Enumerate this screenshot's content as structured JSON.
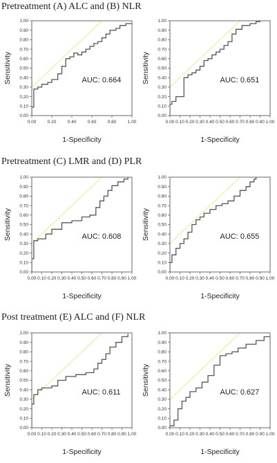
{
  "sections": [
    {
      "title": "Pretreatment (A) ALC and (B) NLR"
    },
    {
      "title": "Pretreatment (C) LMR and (D) PLR"
    },
    {
      "title": "Post treatment (E) ALC and (F) NLR"
    }
  ],
  "chart_data": [
    {
      "type": "line",
      "panel": "A",
      "auc_label": "AUC: 0.664",
      "xlabel": "1-Specificity",
      "ylabel": "Sensitivity",
      "xlim": [
        0,
        1
      ],
      "ylim": [
        0,
        1
      ],
      "x_ticks": [
        "0.00",
        "0.20",
        "0.40",
        "0.60",
        "0.80",
        "1.00"
      ],
      "y_ticks": [
        "0.00",
        "0.10",
        "0.20",
        "0.30",
        "0.40",
        "0.50",
        "0.60",
        "0.70",
        "0.80",
        "0.90",
        "1.00"
      ],
      "reference_line": {
        "x": [
          0,
          1
        ],
        "y": [
          0.3,
          1.3
        ],
        "color": "#e8e89a"
      },
      "series": [
        {
          "color": "#555555",
          "x": [
            0,
            0,
            0.02,
            0.02,
            0.06,
            0.06,
            0.1,
            0.1,
            0.16,
            0.16,
            0.2,
            0.2,
            0.26,
            0.26,
            0.3,
            0.3,
            0.34,
            0.34,
            0.38,
            0.38,
            0.42,
            0.42,
            0.46,
            0.46,
            0.5,
            0.5,
            0.54,
            0.54,
            0.58,
            0.58,
            0.62,
            0.62,
            0.66,
            0.66,
            0.7,
            0.7,
            0.74,
            0.74,
            0.78,
            0.78,
            0.84,
            0.84,
            0.88,
            0.88,
            0.94,
            0.94,
            1.0
          ],
          "y": [
            0,
            0.09,
            0.09,
            0.28,
            0.28,
            0.3,
            0.3,
            0.33,
            0.33,
            0.35,
            0.35,
            0.38,
            0.38,
            0.44,
            0.44,
            0.52,
            0.52,
            0.6,
            0.6,
            0.62,
            0.62,
            0.66,
            0.66,
            0.64,
            0.64,
            0.67,
            0.67,
            0.7,
            0.7,
            0.73,
            0.73,
            0.76,
            0.76,
            0.78,
            0.78,
            0.82,
            0.82,
            0.86,
            0.86,
            0.9,
            0.9,
            0.92,
            0.92,
            0.95,
            0.95,
            0.97,
            0.97
          ]
        }
      ]
    },
    {
      "type": "line",
      "panel": "B",
      "auc_label": "AUC: 0.651",
      "xlabel": "1-Specificity",
      "ylabel": "Sensitivity",
      "xlim": [
        0,
        1
      ],
      "ylim": [
        0,
        1
      ],
      "x_ticks": [
        "0.00",
        "0.10",
        "0.20",
        "0.30",
        "0.40",
        "0.50",
        "0.60",
        "0.70",
        "0.80",
        "0.90",
        "1.00"
      ],
      "y_ticks": [
        "0.00",
        "0.10",
        "0.20",
        "0.30",
        "0.40",
        "0.50",
        "0.60",
        "0.70",
        "0.80",
        "0.90",
        "1.00"
      ],
      "reference_line": {
        "x": [
          0,
          1
        ],
        "y": [
          0.3,
          1.3
        ],
        "color": "#e8e89a"
      },
      "series": [
        {
          "color": "#555555",
          "x": [
            0,
            0,
            0.02,
            0.02,
            0.06,
            0.06,
            0.14,
            0.14,
            0.18,
            0.18,
            0.22,
            0.22,
            0.26,
            0.26,
            0.3,
            0.3,
            0.34,
            0.34,
            0.38,
            0.38,
            0.42,
            0.42,
            0.46,
            0.46,
            0.5,
            0.5,
            0.54,
            0.54,
            0.58,
            0.58,
            0.62,
            0.62,
            0.66,
            0.66,
            0.72,
            0.72,
            0.8,
            0.8,
            0.86,
            0.86,
            0.9,
            0.9
          ],
          "y": [
            0,
            0.12,
            0.12,
            0.15,
            0.15,
            0.2,
            0.2,
            0.4,
            0.4,
            0.43,
            0.43,
            0.45,
            0.45,
            0.48,
            0.48,
            0.52,
            0.52,
            0.58,
            0.58,
            0.6,
            0.6,
            0.64,
            0.64,
            0.67,
            0.67,
            0.7,
            0.7,
            0.74,
            0.74,
            0.78,
            0.78,
            0.86,
            0.86,
            0.91,
            0.91,
            0.95,
            0.95,
            0.97,
            0.97,
            0.99,
            0.99,
            1.0
          ]
        }
      ]
    },
    {
      "type": "line",
      "panel": "C",
      "auc_label": "AUC: 0.608",
      "xlabel": "1-Specificity",
      "ylabel": "Sensitivity",
      "xlim": [
        0,
        1
      ],
      "ylim": [
        0,
        1
      ],
      "x_ticks": [
        "0.00",
        "0.10",
        "0.20",
        "0.30",
        "0.40",
        "0.50",
        "0.60",
        "0.70",
        "0.80",
        "0.90",
        "1.00"
      ],
      "y_ticks": [
        "0.00",
        "0.10",
        "0.20",
        "0.30",
        "0.40",
        "0.50",
        "0.60",
        "0.70",
        "0.80",
        "0.90",
        "1.00"
      ],
      "reference_line": {
        "x": [
          0,
          1
        ],
        "y": [
          0.3,
          1.3
        ],
        "color": "#e8e89a"
      },
      "series": [
        {
          "color": "#555555",
          "x": [
            0,
            0,
            0.02,
            0.02,
            0.06,
            0.06,
            0.14,
            0.14,
            0.2,
            0.2,
            0.3,
            0.3,
            0.4,
            0.4,
            0.5,
            0.5,
            0.58,
            0.58,
            0.64,
            0.64,
            0.68,
            0.68,
            0.72,
            0.72,
            0.76,
            0.76,
            0.8,
            0.8,
            0.86,
            0.86,
            0.92,
            0.92,
            0.96,
            0.96
          ],
          "y": [
            0,
            0.14,
            0.14,
            0.33,
            0.33,
            0.35,
            0.35,
            0.4,
            0.4,
            0.45,
            0.45,
            0.52,
            0.52,
            0.54,
            0.54,
            0.58,
            0.58,
            0.6,
            0.6,
            0.68,
            0.68,
            0.75,
            0.75,
            0.8,
            0.8,
            0.86,
            0.86,
            0.91,
            0.91,
            0.95,
            0.95,
            0.98,
            0.98,
            1.0
          ]
        }
      ]
    },
    {
      "type": "line",
      "panel": "D",
      "auc_label": "AUC: 0.655",
      "xlabel": "1-Specificity",
      "ylabel": "Sensitivity",
      "xlim": [
        0,
        1
      ],
      "ylim": [
        0,
        1
      ],
      "x_ticks": [
        "0.00",
        "0.10",
        "0.20",
        "0.30",
        "0.40",
        "0.50",
        "0.60",
        "0.70",
        "0.80",
        "0.90",
        "1.00"
      ],
      "y_ticks": [
        "0.00",
        "0.10",
        "0.20",
        "0.30",
        "0.40",
        "0.50",
        "0.60",
        "0.70",
        "0.80",
        "0.90",
        "1.00"
      ],
      "reference_line": {
        "x": [
          0,
          1
        ],
        "y": [
          0.3,
          1.3
        ],
        "color": "#e8e89a"
      },
      "series": [
        {
          "color": "#555555",
          "x": [
            0,
            0,
            0.02,
            0.02,
            0.06,
            0.06,
            0.1,
            0.1,
            0.14,
            0.14,
            0.18,
            0.18,
            0.22,
            0.22,
            0.26,
            0.26,
            0.3,
            0.3,
            0.34,
            0.34,
            0.4,
            0.4,
            0.46,
            0.46,
            0.52,
            0.52,
            0.58,
            0.58,
            0.64,
            0.64,
            0.7,
            0.7,
            0.76,
            0.76,
            0.8,
            0.8,
            0.84,
            0.84,
            0.86,
            0.86
          ],
          "y": [
            0,
            0.1,
            0.1,
            0.18,
            0.18,
            0.25,
            0.25,
            0.3,
            0.3,
            0.35,
            0.35,
            0.42,
            0.42,
            0.5,
            0.5,
            0.55,
            0.55,
            0.58,
            0.58,
            0.62,
            0.62,
            0.66,
            0.66,
            0.7,
            0.7,
            0.72,
            0.72,
            0.75,
            0.75,
            0.8,
            0.8,
            0.86,
            0.86,
            0.9,
            0.9,
            0.95,
            0.95,
            0.98,
            0.98,
            1.0
          ]
        }
      ]
    },
    {
      "type": "line",
      "panel": "E",
      "auc_label": "AUC: 0.611",
      "xlabel": "1-Specificity",
      "ylabel": "Sensitivity",
      "xlim": [
        0,
        1
      ],
      "ylim": [
        0,
        1
      ],
      "x_ticks": [
        "0.00",
        "0.10",
        "0.20",
        "0.30",
        "0.40",
        "0.50",
        "0.60",
        "0.70",
        "0.80",
        "0.90",
        "1.00"
      ],
      "y_ticks": [
        "0.00",
        "0.10",
        "0.20",
        "0.30",
        "0.40",
        "0.50",
        "0.60",
        "0.70",
        "0.80",
        "0.90",
        "1.00"
      ],
      "reference_line": {
        "x": [
          0,
          1
        ],
        "y": [
          0.3,
          1.3
        ],
        "color": "#e8e89a"
      },
      "series": [
        {
          "color": "#555555",
          "x": [
            0,
            0,
            0.02,
            0.02,
            0.06,
            0.06,
            0.1,
            0.1,
            0.2,
            0.2,
            0.26,
            0.26,
            0.34,
            0.34,
            0.44,
            0.44,
            0.54,
            0.54,
            0.62,
            0.62,
            0.66,
            0.66,
            0.7,
            0.7,
            0.74,
            0.74,
            0.78,
            0.78,
            0.84,
            0.84,
            0.9,
            0.9,
            0.96,
            0.96
          ],
          "y": [
            0,
            0.25,
            0.25,
            0.35,
            0.35,
            0.4,
            0.4,
            0.42,
            0.42,
            0.44,
            0.44,
            0.5,
            0.5,
            0.54,
            0.54,
            0.56,
            0.56,
            0.58,
            0.58,
            0.62,
            0.62,
            0.68,
            0.68,
            0.72,
            0.72,
            0.78,
            0.78,
            0.85,
            0.85,
            0.9,
            0.9,
            0.96,
            0.96,
            0.99
          ]
        }
      ]
    },
    {
      "type": "line",
      "panel": "F",
      "auc_label": "AUC: 0.627",
      "xlabel": "1-Specificity",
      "ylabel": "Sensitivity",
      "xlim": [
        0,
        1
      ],
      "ylim": [
        0,
        1
      ],
      "x_ticks": [
        "0.00",
        "0.10",
        "0.20",
        "0.30",
        "0.40",
        "0.50",
        "0.60",
        "0.70",
        "0.80",
        "0.90",
        "1.00"
      ],
      "y_ticks": [
        "0.00",
        "0.10",
        "0.20",
        "0.30",
        "0.40",
        "0.50",
        "0.60",
        "0.70",
        "0.80",
        "0.90",
        "1.00"
      ],
      "reference_line": {
        "x": [
          0,
          1
        ],
        "y": [
          0.3,
          1.3
        ],
        "color": "#e8e89a"
      },
      "series": [
        {
          "color": "#555555",
          "x": [
            0,
            0,
            0.04,
            0.04,
            0.08,
            0.08,
            0.12,
            0.12,
            0.16,
            0.16,
            0.2,
            0.2,
            0.26,
            0.26,
            0.32,
            0.32,
            0.38,
            0.38,
            0.44,
            0.44,
            0.5,
            0.5,
            0.56,
            0.56,
            0.62,
            0.62,
            0.68,
            0.68,
            0.76,
            0.76,
            0.86,
            0.86,
            0.94,
            0.94,
            1.0
          ],
          "y": [
            0,
            0.02,
            0.02,
            0.08,
            0.08,
            0.2,
            0.2,
            0.28,
            0.28,
            0.32,
            0.32,
            0.38,
            0.38,
            0.42,
            0.42,
            0.48,
            0.48,
            0.55,
            0.55,
            0.66,
            0.66,
            0.76,
            0.76,
            0.78,
            0.78,
            0.8,
            0.8,
            0.84,
            0.84,
            0.88,
            0.88,
            0.92,
            0.92,
            0.96,
            0.96
          ]
        }
      ]
    }
  ]
}
